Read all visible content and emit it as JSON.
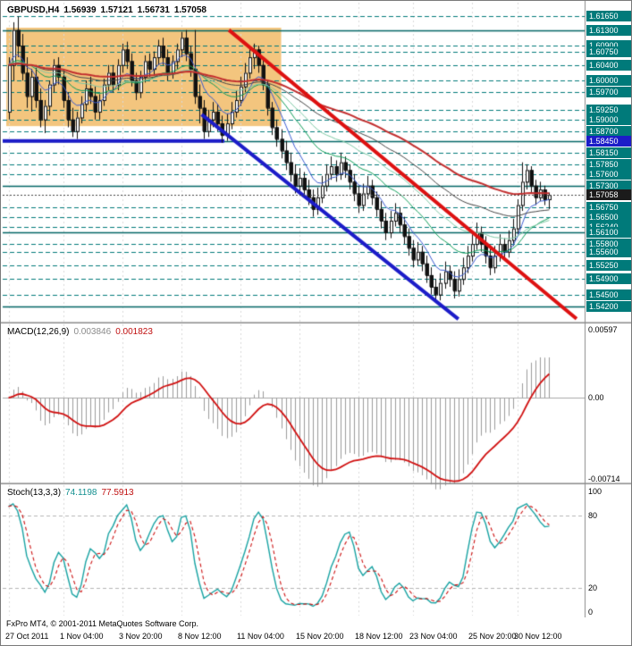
{
  "main_panel": {
    "symbol_period": "GBPUSD,H4",
    "ohlc": {
      "open": "1.56939",
      "high": "1.57121",
      "low": "1.56731",
      "close": "1.57058"
    }
  },
  "macd_panel": {
    "label": "MACD(12,26,9)",
    "value_main": "0.003846",
    "value_signal": "0.001823",
    "scale_labels": [
      {
        "text": "0.00597",
        "value": 0.00597
      },
      {
        "text": "0.00",
        "value": 0
      },
      {
        "text": "-0.00714",
        "value": -0.00714
      }
    ]
  },
  "stoch_panel": {
    "label": "Stoch(13,3,3)",
    "value_main": "74.1198",
    "value_signal": "77.5913",
    "scale_labels": [
      {
        "text": "100",
        "value": 100
      },
      {
        "text": "80",
        "value": 80
      },
      {
        "text": "20",
        "value": 20
      },
      {
        "text": "0",
        "value": 0
      }
    ]
  },
  "footer": {
    "copyright": "FxPro MT4, © 2001-2011 MetaQuotes Software Corp."
  },
  "colors": {
    "teal_level": "#007a7a",
    "teal_solid": "#006565",
    "blue": "#1c1cc8",
    "red_trend": "#dd1111",
    "highlight": "#f3c57e",
    "bull": "#ffffff",
    "bear": "#111111",
    "candle_border": "#111111",
    "grid": "#d9d9d9",
    "zero_line": "#aaaaaa",
    "macd_hist": "#9b9b9b",
    "macd_signal": "#d01010",
    "stoch_main": "#17a2a2",
    "stoch_signal": "#cc1111",
    "stoch_levels": "#b5b5b5",
    "bid_line": "#444444",
    "bid_box": "#1b1b1b",
    "panel_border": "#8a8a8a"
  },
  "chart_data": [
    {
      "type": "candlestick",
      "title": "GBPUSD,H4",
      "ylim": [
        1.5385,
        1.6175
      ],
      "x_labels": [
        {
          "bar": 0,
          "text": "27 Oct 2011"
        },
        {
          "bar": 12,
          "text": "1 Nov 04:00"
        },
        {
          "bar": 25,
          "text": "3 Nov 20:00"
        },
        {
          "bar": 38,
          "text": "8 Nov 12:00"
        },
        {
          "bar": 51,
          "text": "11 Nov 04:00"
        },
        {
          "bar": 64,
          "text": "15 Nov 20:00"
        },
        {
          "bar": 77,
          "text": "18 Nov 12:00"
        },
        {
          "bar": 89,
          "text": "23 Nov 04:00"
        },
        {
          "bar": 102,
          "text": "25 Nov 20:00"
        },
        {
          "bar": 112,
          "text": "30 Nov 12:00"
        }
      ],
      "ohlc": [
        [
          1.592,
          1.606,
          1.59,
          1.604
        ],
        [
          1.604,
          1.615,
          1.6,
          1.613
        ],
        [
          1.613,
          1.6165,
          1.606,
          1.609
        ],
        [
          1.609,
          1.612,
          1.6,
          1.602
        ],
        [
          1.602,
          1.606,
          1.593,
          1.596
        ],
        [
          1.596,
          1.603,
          1.592,
          1.601
        ],
        [
          1.601,
          1.604,
          1.593,
          1.595
        ],
        [
          1.595,
          1.598,
          1.588,
          1.59
        ],
        [
          1.59,
          1.595,
          1.5865,
          1.5935
        ],
        [
          1.5935,
          1.6,
          1.591,
          1.599
        ],
        [
          1.599,
          1.6055,
          1.597,
          1.604
        ],
        [
          1.604,
          1.606,
          1.599,
          1.601
        ],
        [
          1.601,
          1.603,
          1.593,
          1.595
        ],
        [
          1.595,
          1.597,
          1.588,
          1.59
        ],
        [
          1.59,
          1.593,
          1.5855,
          1.587
        ],
        [
          1.587,
          1.592,
          1.585,
          1.5905
        ],
        [
          1.5905,
          1.596,
          1.589,
          1.594
        ],
        [
          1.594,
          1.6,
          1.592,
          1.598
        ],
        [
          1.598,
          1.601,
          1.594,
          1.596
        ],
        [
          1.596,
          1.5985,
          1.59,
          1.592
        ],
        [
          1.592,
          1.5965,
          1.59,
          1.595
        ],
        [
          1.595,
          1.6005,
          1.5935,
          1.599
        ],
        [
          1.599,
          1.604,
          1.5975,
          1.602
        ],
        [
          1.602,
          1.604,
          1.597,
          1.599
        ],
        [
          1.599,
          1.6055,
          1.5975,
          1.604
        ],
        [
          1.604,
          1.6095,
          1.602,
          1.608
        ],
        [
          1.608,
          1.61,
          1.603,
          1.605
        ],
        [
          1.605,
          1.607,
          1.5985,
          1.6
        ],
        [
          1.6,
          1.602,
          1.595,
          1.597
        ],
        [
          1.597,
          1.6025,
          1.5955,
          1.601
        ],
        [
          1.601,
          1.6065,
          1.5995,
          1.605
        ],
        [
          1.605,
          1.607,
          1.601,
          1.603
        ],
        [
          1.603,
          1.6075,
          1.6015,
          1.606
        ],
        [
          1.606,
          1.6105,
          1.604,
          1.609
        ],
        [
          1.609,
          1.611,
          1.604,
          1.606
        ],
        [
          1.606,
          1.608,
          1.6,
          1.602
        ],
        [
          1.602,
          1.6065,
          1.6005,
          1.605
        ],
        [
          1.605,
          1.6095,
          1.603,
          1.608
        ],
        [
          1.608,
          1.6125,
          1.606,
          1.611
        ],
        [
          1.611,
          1.613,
          1.605,
          1.607
        ],
        [
          1.607,
          1.609,
          1.601,
          1.603
        ],
        [
          1.603,
          1.613,
          1.594,
          1.596
        ],
        [
          1.596,
          1.599,
          1.589,
          1.593
        ],
        [
          1.593,
          1.595,
          1.585,
          1.587
        ],
        [
          1.587,
          1.5925,
          1.5855,
          1.59
        ],
        [
          1.59,
          1.5945,
          1.588,
          1.592
        ],
        [
          1.592,
          1.594,
          1.587,
          1.589
        ],
        [
          1.589,
          1.591,
          1.584,
          1.586
        ],
        [
          1.586,
          1.5915,
          1.5845,
          1.589
        ],
        [
          1.589,
          1.5945,
          1.5875,
          1.592
        ],
        [
          1.592,
          1.5975,
          1.5905,
          1.595
        ],
        [
          1.595,
          1.601,
          1.5935,
          1.5985
        ],
        [
          1.5985,
          1.6045,
          1.597,
          1.602
        ],
        [
          1.602,
          1.6085,
          1.6005,
          1.606
        ],
        [
          1.606,
          1.6095,
          1.603,
          1.608
        ],
        [
          1.608,
          1.609,
          1.602,
          1.604
        ],
        [
          1.604,
          1.6055,
          1.5975,
          1.599
        ],
        [
          1.599,
          1.6,
          1.591,
          1.593
        ],
        [
          1.593,
          1.5945,
          1.586,
          1.588
        ],
        [
          1.588,
          1.59,
          1.583,
          1.585
        ],
        [
          1.585,
          1.5875,
          1.58,
          1.582
        ],
        [
          1.582,
          1.5845,
          1.577,
          1.579
        ],
        [
          1.579,
          1.5815,
          1.574,
          1.576
        ],
        [
          1.576,
          1.5785,
          1.571,
          1.573
        ],
        [
          1.573,
          1.5775,
          1.5715,
          1.575
        ],
        [
          1.575,
          1.5765,
          1.57,
          1.572
        ],
        [
          1.572,
          1.5745,
          1.568,
          1.57
        ],
        [
          1.57,
          1.572,
          1.565,
          1.567
        ],
        [
          1.567,
          1.5725,
          1.5655,
          1.57
        ],
        [
          1.57,
          1.5755,
          1.5685,
          1.573
        ],
        [
          1.573,
          1.5785,
          1.5715,
          1.576
        ],
        [
          1.576,
          1.5805,
          1.5745,
          1.578
        ],
        [
          1.578,
          1.5795,
          1.574,
          1.576
        ],
        [
          1.576,
          1.5815,
          1.5745,
          1.579
        ],
        [
          1.579,
          1.5805,
          1.575,
          1.577
        ],
        [
          1.577,
          1.5785,
          1.572,
          1.574
        ],
        [
          1.574,
          1.576,
          1.569,
          1.571
        ],
        [
          1.571,
          1.573,
          1.566,
          1.568
        ],
        [
          1.568,
          1.5735,
          1.5665,
          1.571
        ],
        [
          1.571,
          1.5755,
          1.5695,
          1.573
        ],
        [
          1.573,
          1.5745,
          1.568,
          1.57
        ],
        [
          1.57,
          1.5715,
          1.565,
          1.567
        ],
        [
          1.567,
          1.569,
          1.562,
          1.564
        ],
        [
          1.564,
          1.566,
          1.559,
          1.561
        ],
        [
          1.561,
          1.5665,
          1.5595,
          1.564
        ],
        [
          1.564,
          1.5685,
          1.5625,
          1.566
        ],
        [
          1.566,
          1.5675,
          1.561,
          1.563
        ],
        [
          1.563,
          1.565,
          1.558,
          1.56
        ],
        [
          1.56,
          1.562,
          1.555,
          1.557
        ],
        [
          1.557,
          1.559,
          1.552,
          1.554
        ],
        [
          1.554,
          1.5585,
          1.5525,
          1.556
        ],
        [
          1.556,
          1.5575,
          1.551,
          1.553
        ],
        [
          1.553,
          1.555,
          1.548,
          1.55
        ],
        [
          1.55,
          1.552,
          1.545,
          1.547
        ],
        [
          1.547,
          1.549,
          1.543,
          1.545
        ],
        [
          1.545,
          1.5505,
          1.5435,
          1.548
        ],
        [
          1.548,
          1.5535,
          1.5465,
          1.551
        ],
        [
          1.551,
          1.5525,
          1.547,
          1.549
        ],
        [
          1.549,
          1.551,
          1.544,
          1.546
        ],
        [
          1.546,
          1.5515,
          1.5445,
          1.549
        ],
        [
          1.549,
          1.5545,
          1.5475,
          1.552
        ],
        [
          1.552,
          1.5575,
          1.5505,
          1.555
        ],
        [
          1.555,
          1.5605,
          1.5535,
          1.558
        ],
        [
          1.558,
          1.5635,
          1.5565,
          1.561
        ],
        [
          1.561,
          1.5625,
          1.556,
          1.558
        ],
        [
          1.558,
          1.56,
          1.553,
          1.555
        ],
        [
          1.555,
          1.557,
          1.55,
          1.552
        ],
        [
          1.552,
          1.5575,
          1.5505,
          1.555
        ],
        [
          1.555,
          1.5605,
          1.5535,
          1.558
        ],
        [
          1.558,
          1.5595,
          1.554,
          1.556
        ],
        [
          1.556,
          1.5615,
          1.5545,
          1.559
        ],
        [
          1.559,
          1.5645,
          1.5575,
          1.562
        ],
        [
          1.562,
          1.5695,
          1.5605,
          1.568
        ],
        [
          1.568,
          1.579,
          1.5665,
          1.574
        ],
        [
          1.574,
          1.5785,
          1.572,
          1.577
        ],
        [
          1.577,
          1.578,
          1.571,
          1.573
        ],
        [
          1.573,
          1.5745,
          1.568,
          1.57
        ],
        [
          1.57,
          1.574,
          1.569,
          1.572
        ],
        [
          1.572,
          1.573,
          1.568,
          1.5695
        ],
        [
          1.5695,
          1.5712,
          1.567,
          1.5706
        ]
      ],
      "price_levels": [
        {
          "price": 1.6165,
          "label": "1.61650",
          "line": "dashed"
        },
        {
          "price": 1.613,
          "label": "1.61300",
          "line": "solid"
        },
        {
          "price": 1.609,
          "label": "1.60900",
          "line": "dashed"
        },
        {
          "price": 1.6075,
          "label": "1.60750",
          "line": "dashed"
        },
        {
          "price": 1.604,
          "label": "1.60400",
          "line": "dashed"
        },
        {
          "price": 1.6,
          "label": "1.60000",
          "line": "dashed"
        },
        {
          "price": 1.597,
          "label": "1.59700",
          "line": "dashed"
        },
        {
          "price": 1.5925,
          "label": "1.59250",
          "line": "dashed"
        },
        {
          "price": 1.59,
          "label": "1.59000",
          "line": "dashed"
        },
        {
          "price": 1.587,
          "label": "1.58700",
          "line": "dashed"
        },
        {
          "price": 1.5845,
          "label": "1.58450",
          "line": "solid",
          "label_bg": "#1c1cc8"
        },
        {
          "price": 1.5815,
          "label": "1.58150",
          "line": "dashed"
        },
        {
          "price": 1.5785,
          "label": "1.57850",
          "line": "dashed"
        },
        {
          "price": 1.576,
          "label": "1.57600",
          "line": "dashed"
        },
        {
          "price": 1.573,
          "label": "1.57300",
          "line": "solid"
        },
        {
          "price": 1.5675,
          "label": "1.56750",
          "line": "dashed"
        },
        {
          "price": 1.565,
          "label": "1.56500",
          "line": "dashed"
        },
        {
          "price": 1.5624,
          "label": "1.56240",
          "line": "dashed"
        },
        {
          "price": 1.561,
          "label": "1.56100",
          "line": "solid"
        },
        {
          "price": 1.558,
          "label": "1.55800",
          "line": "dashed"
        },
        {
          "price": 1.556,
          "label": "1.55600",
          "line": "dashed"
        },
        {
          "price": 1.5525,
          "label": "1.55250",
          "line": "dashed"
        },
        {
          "price": 1.549,
          "label": "1.54900",
          "line": "dashed"
        },
        {
          "price": 1.545,
          "label": "1.54500",
          "line": "dashed"
        },
        {
          "price": 1.542,
          "label": "1.54200",
          "line": "solid"
        }
      ],
      "bid": {
        "price": 1.57058,
        "label": "1.57058"
      },
      "support_line": {
        "price": 1.5845,
        "from_bar": 0,
        "to_bar": 47.5,
        "width": 4
      },
      "highlight_rect": {
        "from_bar": 0,
        "to_bar": 60,
        "top": 1.6136,
        "bottom": 1.5883
      },
      "trendlines": [
        {
          "name": "red-downtrend",
          "color": "#dd1111",
          "width": 4,
          "from": [
            49,
            1.613
          ],
          "to": [
            125.5,
            1.5388
          ]
        },
        {
          "name": "blue-downtrend",
          "color": "#1c1cc8",
          "width": 4,
          "from": [
            43,
            1.5913
          ],
          "to": [
            99.5,
            1.5387
          ]
        }
      ],
      "moving_averages": [
        {
          "period": 8,
          "color": "#3b5bd1",
          "width": 1
        },
        {
          "period": 21,
          "color": "#0f9d58",
          "width": 1
        },
        {
          "period": 34,
          "color": "#7ec9a5",
          "width": 1
        },
        {
          "period": 55,
          "color": "#444444",
          "width": 1
        },
        {
          "period": 80,
          "color": "#c22e2e",
          "width": 2
        }
      ]
    },
    {
      "type": "line",
      "name": "MACD(12,26,9)",
      "params": {
        "fast": 12,
        "slow": 26,
        "signal": 9
      },
      "current_values": {
        "macd": 0.003846,
        "signal": 0.001823
      },
      "ylim": [
        -0.00714,
        0.00597
      ],
      "computed_from": "chart_data[0].ohlc closes"
    },
    {
      "type": "line",
      "name": "Stoch(13,3,3)",
      "params": {
        "k": 13,
        "d": 3,
        "slowing": 3
      },
      "current_values": {
        "k": 74.1198,
        "d": 77.5913
      },
      "ylim": [
        0,
        100
      ],
      "levels": [
        80,
        20
      ],
      "computed_from": "chart_data[0].ohlc"
    }
  ]
}
